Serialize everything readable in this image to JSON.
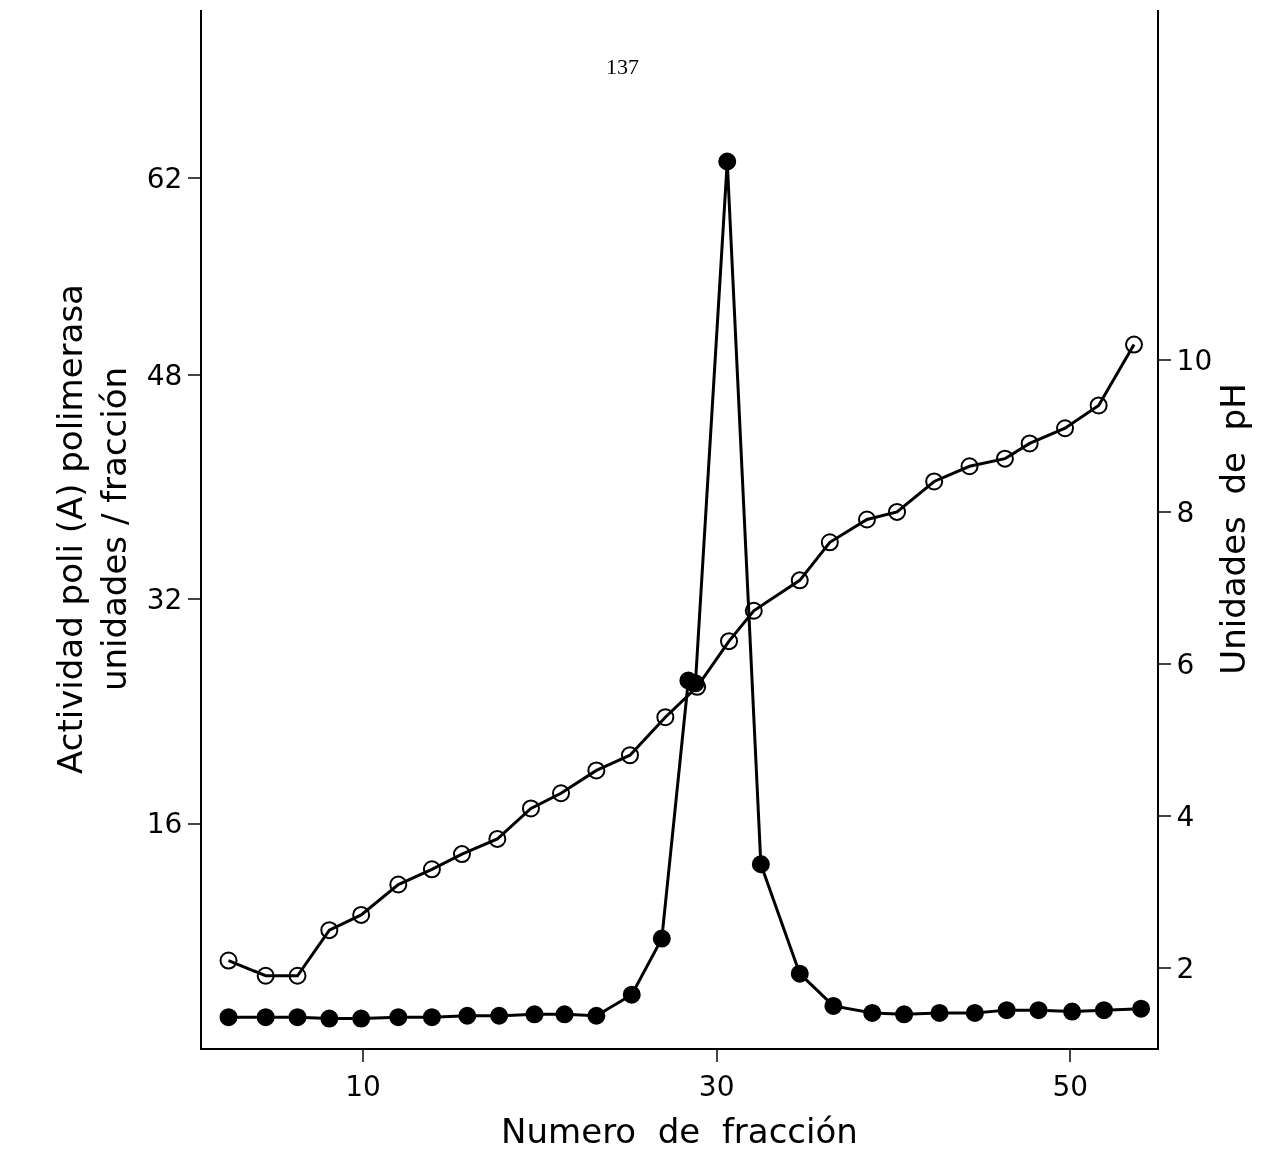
{
  "chart_data": {
    "type": "line",
    "xlabel": "Numero  de  fracción",
    "ylabel": "Actividad poli (A) polimerasa\nunidades / fracción",
    "y2label": "Unidades  de  pH",
    "annotations": [
      "137"
    ],
    "xlim": [
      0.9,
      54.9
    ],
    "xticks": [
      10,
      30,
      50
    ],
    "ylim": [
      0,
      74
    ],
    "yticks": [
      16,
      32,
      48,
      62
    ],
    "y2lim": [
      0.95,
      14.6
    ],
    "y2ticks": [
      2,
      4,
      6,
      8,
      10
    ],
    "legend": false,
    "marker": "circle",
    "line_style": "solid",
    "series": [
      {
        "color": "#000000",
        "x": [
          2.4,
          4.5,
          6.3,
          8.1,
          9.9,
          12,
          13.9,
          15.9,
          17.7,
          19.7,
          21.4,
          23.2,
          25.2,
          26.9,
          28.4,
          28.8,
          30.6,
          32.5,
          34.7,
          36.6,
          38.8,
          40.6,
          42.6,
          44.6,
          46.4,
          48.2,
          50.1,
          51.9,
          54.0
        ],
        "values": [
          2.2,
          2.2,
          2.2,
          2.1,
          2.1,
          2.2,
          2.2,
          2.3,
          2.3,
          2.4,
          2.4,
          2.3,
          3.8,
          7.8,
          26.2,
          26.0,
          63.2,
          13.1,
          5.3,
          3.0,
          2.5,
          2.4,
          2.5,
          2.5,
          2.7,
          2.7,
          2.6,
          2.7,
          2.8
        ]
      },
      {
        "color": "#000000",
        "axis": "y2",
        "x": [
          2.4,
          4.5,
          6.3,
          8.1,
          9.9,
          12,
          13.9,
          15.6,
          17.6,
          19.5,
          21.2,
          23.2,
          25.1,
          27.1,
          28.9,
          30.7,
          32.1,
          34.7,
          36.4,
          38.5,
          40.2,
          42.3,
          44.3,
          46.3,
          47.7,
          49.7,
          51.6,
          53.6
        ],
        "values": [
          2.1,
          1.9,
          1.9,
          2.5,
          2.7,
          3.1,
          3.3,
          3.5,
          3.7,
          4.1,
          4.3,
          4.6,
          4.8,
          5.3,
          5.7,
          6.3,
          6.7,
          7.1,
          7.6,
          7.9,
          8.0,
          8.4,
          8.6,
          8.7,
          8.9,
          9.1,
          9.4,
          10.2
        ]
      }
    ]
  }
}
